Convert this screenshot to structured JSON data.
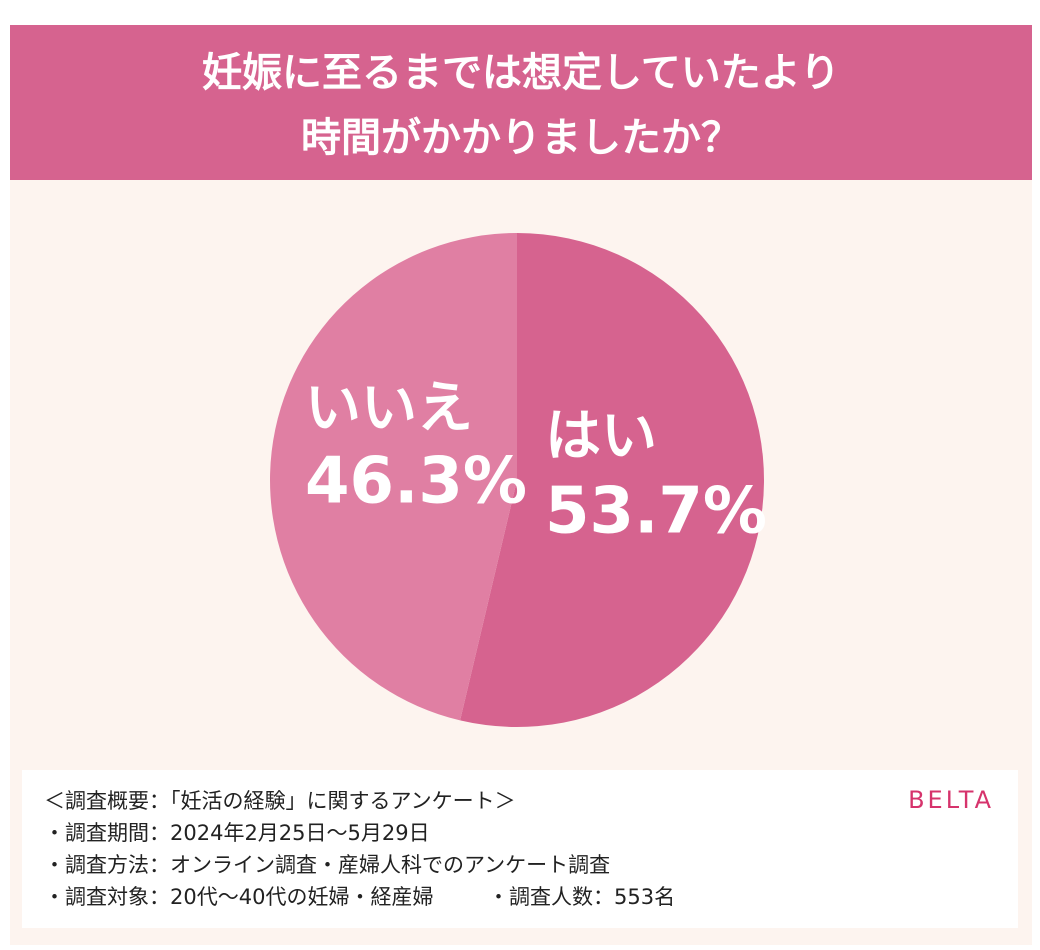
{
  "chart_data": {
    "type": "pie",
    "title": [
      "妊娠に至るまでは想定していたより",
      "時間がかかりましたか？"
    ],
    "categories": [
      "はい",
      "いいえ"
    ],
    "values": [
      53.7,
      46.3
    ],
    "value_labels": [
      "53.7%",
      "46.3%"
    ],
    "colors": [
      "#d6638f",
      "#e07fa3"
    ]
  },
  "notes": {
    "heading": "＜調査概要：「妊活の経験」に関するアンケート＞",
    "lines": [
      "・調査期間：2024年2月25日〜5月29日",
      "・調査方法：オンライン調査・産婦人科でのアンケート調査",
      "・調査対象：20代〜40代の妊婦・経産婦"
    ],
    "extra": "・調査人数：553名",
    "brand": "BELTA"
  }
}
